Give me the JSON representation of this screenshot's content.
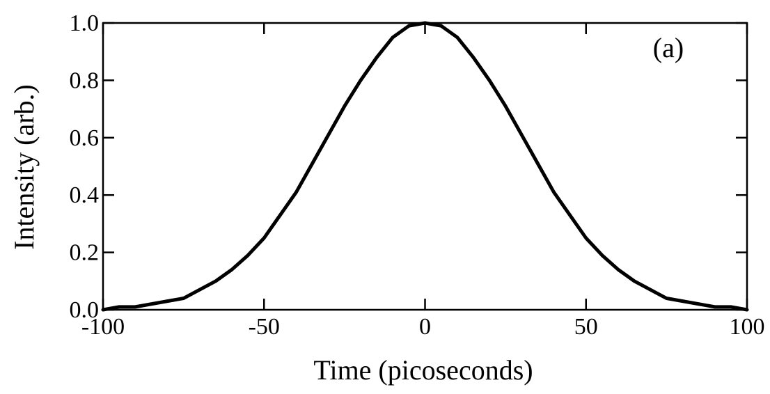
{
  "chart_data": {
    "type": "line",
    "annotation": "(a)",
    "x_label": "Time (picoseconds)",
    "y_label": "Intensity (arb.)",
    "x": [
      -100,
      -95,
      -90,
      -85,
      -80,
      -75,
      -70,
      -65,
      -60,
      -55,
      -50,
      -45,
      -40,
      -35,
      -30,
      -25,
      -20,
      -15,
      -10,
      -5,
      0,
      5,
      10,
      15,
      20,
      25,
      30,
      35,
      40,
      45,
      50,
      55,
      60,
      65,
      70,
      75,
      80,
      85,
      90,
      95,
      100
    ],
    "series": [
      {
        "name": "Intensity",
        "color": "#000000",
        "values": [
          0,
          0.01,
          0.01,
          0.02,
          0.03,
          0.04,
          0.07,
          0.1,
          0.14,
          0.19,
          0.25,
          0.33,
          0.41,
          0.51,
          0.61,
          0.71,
          0.8,
          0.88,
          0.95,
          0.99,
          1,
          0.99,
          0.95,
          0.88,
          0.8,
          0.71,
          0.61,
          0.51,
          0.41,
          0.33,
          0.25,
          0.19,
          0.14,
          0.1,
          0.07,
          0.04,
          0.03,
          0.02,
          0.01,
          0.01,
          0
        ]
      }
    ],
    "xlim": [
      -100,
      100
    ],
    "xticks": [
      -100,
      -50,
      0,
      50,
      100
    ],
    "ylim": [
      0,
      1
    ],
    "yticks": [
      {
        "value": 0,
        "label": "0.0"
      },
      0.2,
      0.4,
      0.6,
      0.8,
      {
        "value": 1,
        "label": "1.0"
      }
    ],
    "grid": false
  }
}
